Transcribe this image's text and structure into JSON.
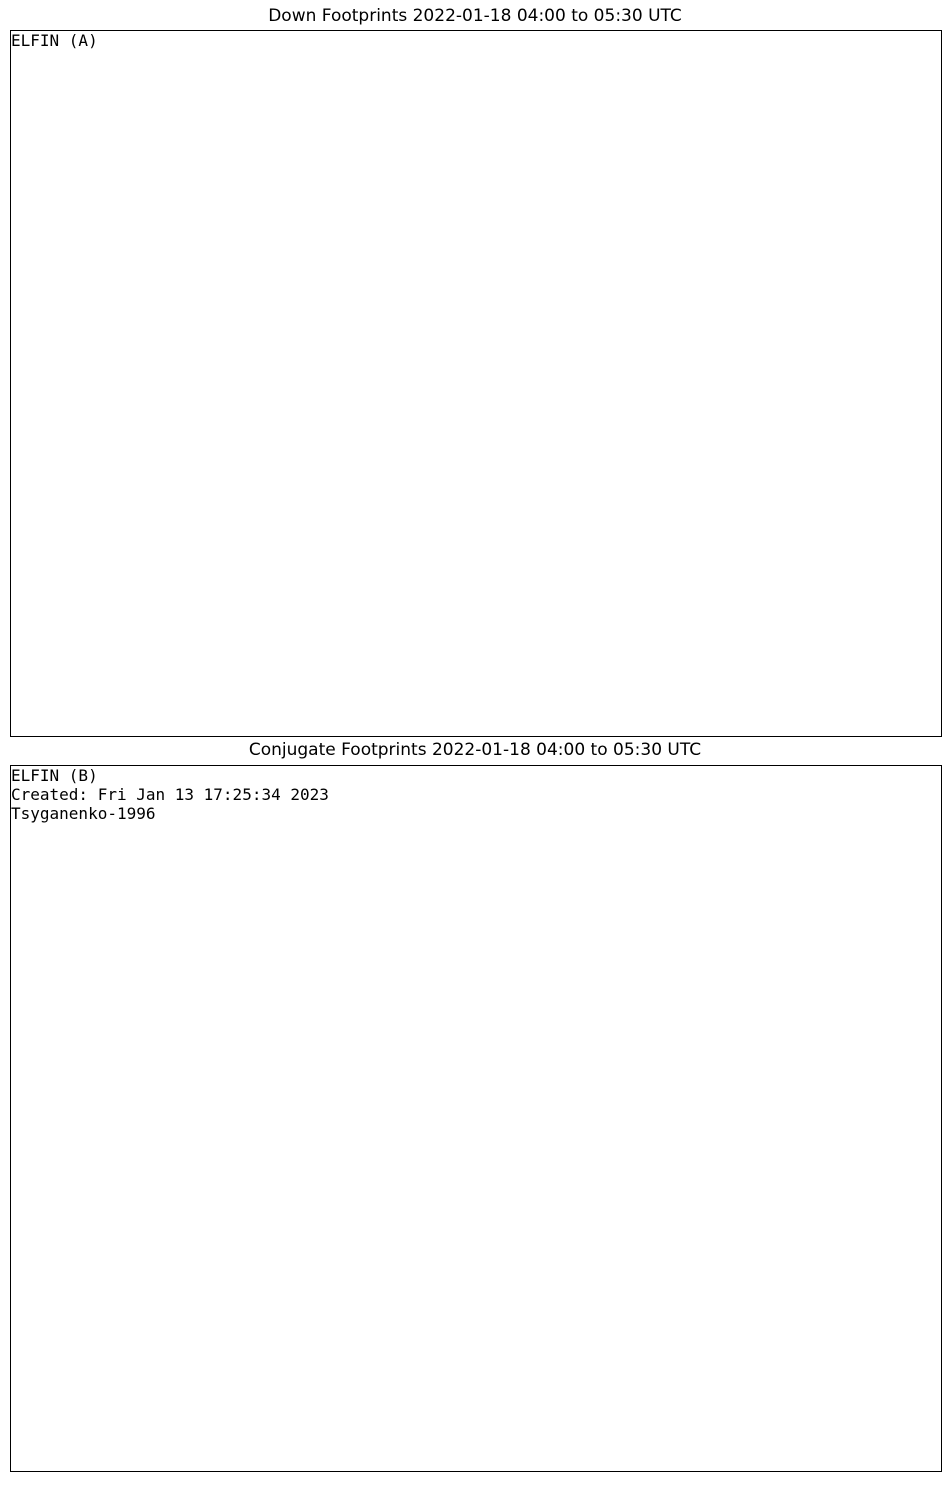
{
  "t1": "Down Footprints 2022-01-18 04:00 to 05:30 UTC",
  "t2": "Conjugate Footprints 2022-01-18 04:00 to 05:30 UTC",
  "a": "ELFIN (A)",
  "b": "ELFIN (B)",
  "model": "Tsyganenko-1996",
  "created": "Created: Fri Jan 13 17:25:34 2023"
}
